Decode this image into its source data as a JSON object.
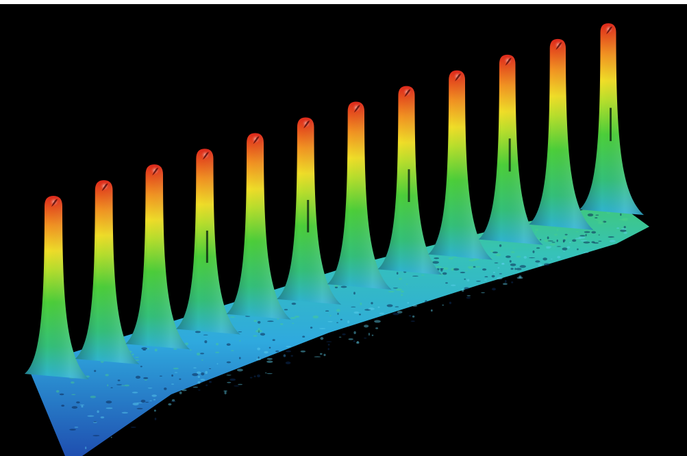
{
  "image": {
    "subject": "3d-surface-plot",
    "background_color": "#000000",
    "peak_count": 12,
    "colormap": [
      "#2a58b8",
      "#2fb7e6",
      "#3bc86a",
      "#9be033",
      "#f2e22a",
      "#f38a1e",
      "#e2231a"
    ]
  }
}
